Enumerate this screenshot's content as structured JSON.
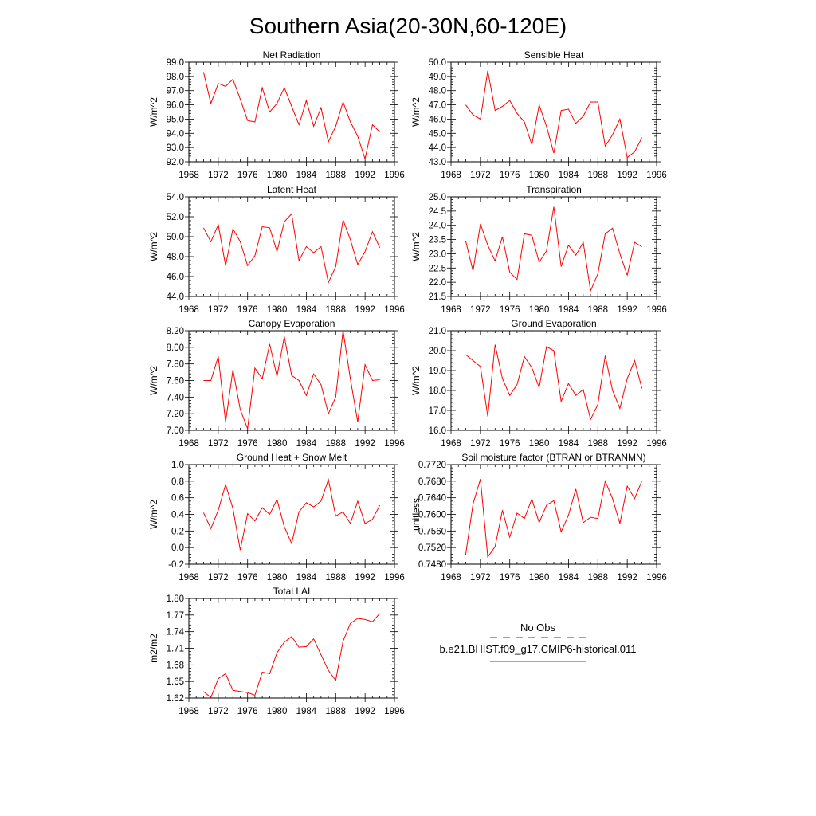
{
  "title": "Southern Asia(20-30N,60-120E)",
  "legend": {
    "items": [
      {
        "label": "No Obs",
        "color": "#3a3a8c",
        "style": "dashed"
      },
      {
        "label": "b.e21.BHIST.f09_g17.CMIP6-historical.011",
        "color": "#ff0000",
        "style": "solid"
      }
    ]
  },
  "chart_data": [
    {
      "type": "line",
      "title": "Net Radiation",
      "xlabel": "",
      "ylabel": "W/m^2",
      "xlim": [
        1968,
        1996
      ],
      "ylim": [
        92.0,
        99.0
      ],
      "xticks": [
        1968,
        1972,
        1976,
        1980,
        1984,
        1988,
        1992,
        1996
      ],
      "yticks": [
        "92.0",
        "93.0",
        "94.0",
        "95.0",
        "96.0",
        "97.0",
        "98.0",
        "99.0"
      ],
      "x": [
        1970,
        1971,
        1972,
        1973,
        1974,
        1975,
        1976,
        1977,
        1978,
        1979,
        1980,
        1981,
        1982,
        1983,
        1984,
        1985,
        1986,
        1987,
        1988,
        1989,
        1990,
        1991,
        1992,
        1993,
        1994
      ],
      "series": [
        {
          "color": "#ff0000",
          "values": [
            98.3,
            96.1,
            97.5,
            97.3,
            97.8,
            96.4,
            94.9,
            94.8,
            97.2,
            95.5,
            96.1,
            97.2,
            95.9,
            94.6,
            96.3,
            94.5,
            95.8,
            93.4,
            94.5,
            96.2,
            94.8,
            93.8,
            92.2,
            94.6,
            94.1
          ]
        }
      ]
    },
    {
      "type": "line",
      "title": "Sensible Heat",
      "xlabel": "",
      "ylabel": "W/m^2",
      "xlim": [
        1968,
        1996
      ],
      "ylim": [
        43.0,
        50.0
      ],
      "xticks": [
        1968,
        1972,
        1976,
        1980,
        1984,
        1988,
        1992,
        1996
      ],
      "yticks": [
        "43.0",
        "44.0",
        "45.0",
        "46.0",
        "47.0",
        "48.0",
        "49.0",
        "50.0"
      ],
      "x": [
        1970,
        1971,
        1972,
        1973,
        1974,
        1975,
        1976,
        1977,
        1978,
        1979,
        1980,
        1981,
        1982,
        1983,
        1984,
        1985,
        1986,
        1987,
        1988,
        1989,
        1990,
        1991,
        1992,
        1993,
        1994
      ],
      "series": [
        {
          "color": "#ff0000",
          "values": [
            47.0,
            46.3,
            46.0,
            49.4,
            46.6,
            46.9,
            47.3,
            46.4,
            45.8,
            44.2,
            47.0,
            45.5,
            43.6,
            46.6,
            46.7,
            45.7,
            46.2,
            47.2,
            47.2,
            44.1,
            44.9,
            46.0,
            43.3,
            43.7,
            44.7
          ]
        }
      ]
    },
    {
      "type": "line",
      "title": "Latent Heat",
      "xlabel": "",
      "ylabel": "W/m^2",
      "xlim": [
        1968,
        1996
      ],
      "ylim": [
        44.0,
        54.0
      ],
      "xticks": [
        1968,
        1972,
        1976,
        1980,
        1984,
        1988,
        1992,
        1996
      ],
      "yticks": [
        "44.0",
        "46.0",
        "48.0",
        "50.0",
        "52.0",
        "54.0"
      ],
      "x": [
        1970,
        1971,
        1972,
        1973,
        1974,
        1975,
        1976,
        1977,
        1978,
        1979,
        1980,
        1981,
        1982,
        1983,
        1984,
        1985,
        1986,
        1987,
        1988,
        1989,
        1990,
        1991,
        1992,
        1993,
        1994
      ],
      "series": [
        {
          "color": "#ff0000",
          "values": [
            50.9,
            49.5,
            51.2,
            47.1,
            50.8,
            49.5,
            47.1,
            48.1,
            51.0,
            50.9,
            48.5,
            51.5,
            52.3,
            47.6,
            49.0,
            48.4,
            49.0,
            45.4,
            47.0,
            51.7,
            49.7,
            47.2,
            48.5,
            50.5,
            48.9
          ]
        }
      ]
    },
    {
      "type": "line",
      "title": "Transpiration",
      "xlabel": "",
      "ylabel": "W/m^2",
      "xlim": [
        1968,
        1996
      ],
      "ylim": [
        21.5,
        25.0
      ],
      "xticks": [
        1968,
        1972,
        1976,
        1980,
        1984,
        1988,
        1992,
        1996
      ],
      "yticks": [
        "21.5",
        "22.0",
        "22.5",
        "23.0",
        "23.5",
        "24.0",
        "24.5",
        "25.0"
      ],
      "x": [
        1970,
        1971,
        1972,
        1973,
        1974,
        1975,
        1976,
        1977,
        1978,
        1979,
        1980,
        1981,
        1982,
        1983,
        1984,
        1985,
        1986,
        1987,
        1988,
        1989,
        1990,
        1991,
        1992,
        1993,
        1994
      ],
      "series": [
        {
          "color": "#ff0000",
          "values": [
            23.45,
            22.4,
            24.05,
            23.3,
            22.75,
            23.6,
            22.35,
            22.1,
            23.7,
            23.65,
            22.7,
            23.1,
            24.65,
            22.55,
            23.3,
            22.95,
            23.4,
            21.7,
            22.3,
            23.7,
            23.9,
            23.0,
            22.25,
            23.4,
            23.25
          ]
        }
      ]
    },
    {
      "type": "line",
      "title": "Canopy Evaporation",
      "xlabel": "",
      "ylabel": "W/m^2",
      "xlim": [
        1968,
        1996
      ],
      "ylim": [
        7.0,
        8.2
      ],
      "xticks": [
        1968,
        1972,
        1976,
        1980,
        1984,
        1988,
        1992,
        1996
      ],
      "yticks": [
        "7.00",
        "7.20",
        "7.40",
        "7.60",
        "7.80",
        "8.00",
        "8.20"
      ],
      "x": [
        1970,
        1971,
        1972,
        1973,
        1974,
        1975,
        1976,
        1977,
        1978,
        1979,
        1980,
        1981,
        1982,
        1983,
        1984,
        1985,
        1986,
        1987,
        1988,
        1989,
        1990,
        1991,
        1992,
        1993,
        1994
      ],
      "series": [
        {
          "color": "#ff0000",
          "values": [
            7.6,
            7.6,
            7.89,
            7.1,
            7.73,
            7.25,
            7.02,
            7.75,
            7.62,
            8.04,
            7.65,
            8.13,
            7.66,
            7.6,
            7.42,
            7.68,
            7.55,
            7.2,
            7.4,
            8.2,
            7.62,
            7.1,
            7.79,
            7.6,
            7.61
          ]
        }
      ]
    },
    {
      "type": "line",
      "title": "Ground Evaporation",
      "xlabel": "",
      "ylabel": "W/m^2",
      "xlim": [
        1968,
        1996
      ],
      "ylim": [
        16.0,
        21.0
      ],
      "xticks": [
        1968,
        1972,
        1976,
        1980,
        1984,
        1988,
        1992,
        1996
      ],
      "yticks": [
        "16.0",
        "17.0",
        "18.0",
        "19.0",
        "20.0",
        "21.0"
      ],
      "x": [
        1970,
        1971,
        1972,
        1973,
        1974,
        1975,
        1976,
        1977,
        1978,
        1979,
        1980,
        1981,
        1982,
        1983,
        1984,
        1985,
        1986,
        1987,
        1988,
        1989,
        1990,
        1991,
        1992,
        1993,
        1994
      ],
      "series": [
        {
          "color": "#ff0000",
          "values": [
            19.8,
            19.5,
            19.2,
            16.7,
            20.3,
            18.6,
            17.75,
            18.3,
            19.7,
            19.15,
            18.15,
            20.2,
            20.0,
            17.45,
            18.35,
            17.75,
            18.05,
            16.55,
            17.3,
            19.75,
            18.0,
            17.1,
            18.6,
            19.5,
            18.1
          ]
        }
      ]
    },
    {
      "type": "line",
      "title": "Ground Heat + Snow Melt",
      "xlabel": "",
      "ylabel": "W/m^2",
      "xlim": [
        1968,
        1996
      ],
      "ylim": [
        -0.2,
        1.0
      ],
      "xticks": [
        1968,
        1972,
        1976,
        1980,
        1984,
        1988,
        1992,
        1996
      ],
      "yticks": [
        "-0.2",
        "0.0",
        "0.2",
        "0.4",
        "0.6",
        "0.8",
        "1.0"
      ],
      "x": [
        1970,
        1971,
        1972,
        1973,
        1974,
        1975,
        1976,
        1977,
        1978,
        1979,
        1980,
        1981,
        1982,
        1983,
        1984,
        1985,
        1986,
        1987,
        1988,
        1989,
        1990,
        1991,
        1992,
        1993,
        1994
      ],
      "series": [
        {
          "color": "#ff0000",
          "values": [
            0.42,
            0.23,
            0.45,
            0.76,
            0.47,
            -0.03,
            0.41,
            0.32,
            0.48,
            0.4,
            0.58,
            0.25,
            0.05,
            0.43,
            0.54,
            0.49,
            0.56,
            0.82,
            0.38,
            0.43,
            0.29,
            0.56,
            0.29,
            0.34,
            0.51
          ]
        }
      ]
    },
    {
      "type": "line",
      "title": "Soil moisture factor (BTRAN or BTRANMN)",
      "xlabel": "",
      "ylabel": "unitless",
      "xlim": [
        1968,
        1996
      ],
      "ylim": [
        0.748,
        0.772
      ],
      "xticks": [
        1968,
        1972,
        1976,
        1980,
        1984,
        1988,
        1992,
        1996
      ],
      "yticks": [
        "0.7480",
        "0.7520",
        "0.7560",
        "0.7600",
        "0.7640",
        "0.7680",
        "0.7720"
      ],
      "x": [
        1970,
        1971,
        1972,
        1973,
        1974,
        1975,
        1976,
        1977,
        1978,
        1979,
        1980,
        1981,
        1982,
        1983,
        1984,
        1985,
        1986,
        1987,
        1988,
        1989,
        1990,
        1991,
        1992,
        1993,
        1994
      ],
      "series": [
        {
          "color": "#ff0000",
          "values": [
            0.7503,
            0.7625,
            0.7685,
            0.7497,
            0.7522,
            0.761,
            0.7545,
            0.7603,
            0.759,
            0.7637,
            0.758,
            0.7622,
            0.7633,
            0.7558,
            0.7598,
            0.7661,
            0.758,
            0.7593,
            0.759,
            0.768,
            0.7638,
            0.7578,
            0.7668,
            0.7638,
            0.7681
          ]
        }
      ]
    },
    {
      "type": "line",
      "title": "Total LAI",
      "xlabel": "",
      "ylabel": "m2/m2",
      "xlim": [
        1968,
        1996
      ],
      "ylim": [
        1.62,
        1.8
      ],
      "xticks": [
        1968,
        1972,
        1976,
        1980,
        1984,
        1988,
        1992,
        1996
      ],
      "yticks": [
        "1.62",
        "1.65",
        "1.68",
        "1.71",
        "1.74",
        "1.77",
        "1.80"
      ],
      "x": [
        1970,
        1971,
        1972,
        1973,
        1974,
        1975,
        1976,
        1977,
        1978,
        1979,
        1980,
        1981,
        1982,
        1983,
        1984,
        1985,
        1986,
        1987,
        1988,
        1989,
        1990,
        1991,
        1992,
        1993,
        1994
      ],
      "series": [
        {
          "color": "#ff0000",
          "values": [
            1.632,
            1.621,
            1.655,
            1.664,
            1.634,
            1.632,
            1.63,
            1.625,
            1.667,
            1.664,
            1.702,
            1.721,
            1.731,
            1.712,
            1.713,
            1.727,
            1.698,
            1.67,
            1.652,
            1.723,
            1.755,
            1.764,
            1.762,
            1.758,
            1.773
          ]
        }
      ]
    }
  ]
}
